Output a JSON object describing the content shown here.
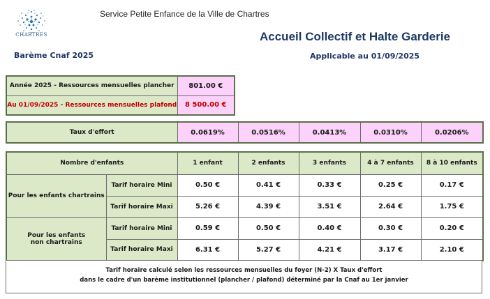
{
  "header": {
    "logo_text": "CHARTRES",
    "service": "Service Petite Enfance de la Ville de Chartres",
    "title": "Accueil Collectif et Halte Garderie",
    "bareme": "Barème Cnaf 2025",
    "applicable": "Applicable au 01/09/2025"
  },
  "ressources": {
    "plancher_label": "Année 2025 - Ressources mensuelles plancher",
    "plancher_value": "801.00 €",
    "plafond_label": "Au 01/09/2025 - Ressources mensuelles plafond",
    "plafond_value": "8 500.00 €"
  },
  "taux": {
    "label": "Taux d'effort",
    "values": [
      "0.0619%",
      "0.0516%",
      "0.0413%",
      "0.0310%",
      "0.0206%"
    ]
  },
  "tarifs": {
    "header_label": "Nombre d'enfants",
    "columns": [
      "1 enfant",
      "2 enfants",
      "3 enfants",
      "4 à 7 enfants",
      "8 à 10 enfants"
    ],
    "groups": [
      {
        "label": "Pour les enfants chartrains",
        "rows": [
          {
            "label": "Tarif horaire Mini",
            "values": [
              "0.50 €",
              "0.41 €",
              "0.33 €",
              "0.25 €",
              "0.17 €"
            ]
          },
          {
            "label": "Tarif horaire Maxi",
            "values": [
              "5.26 €",
              "4.39 €",
              "3.51 €",
              "2.64 €",
              "1.75 €"
            ]
          }
        ]
      },
      {
        "label_line1": "Pour les enfants",
        "label_line2": "non chartrains",
        "rows": [
          {
            "label": "Tarif horaire Mini",
            "values": [
              "0.59 €",
              "0.50 €",
              "0.40 €",
              "0.30 €",
              "0.20 €"
            ]
          },
          {
            "label": "Tarif horaire Maxi",
            "values": [
              "6.31 €",
              "5.27 €",
              "4.21 €",
              "3.17 €",
              "2.10 €"
            ]
          }
        ]
      }
    ]
  },
  "note": {
    "line1": "Tarif  horaire calculé selon les ressources mensuelles du foyer (N-2)  X Taux d'effort",
    "line2": "dans le cadre d'un barème institutionnel (plancher / plafond) déterminé par la Cnaf au 1er janvier"
  },
  "colors": {
    "green": "#dce9c8",
    "pink": "#fcd2fb",
    "title_blue": "#1f3864",
    "red": "#c00000"
  }
}
